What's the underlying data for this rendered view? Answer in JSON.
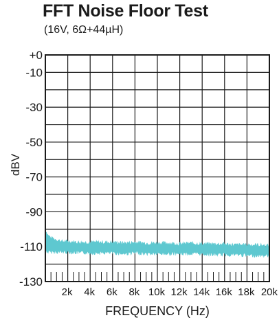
{
  "chart_data": {
    "type": "area",
    "title": "FFT Noise Floor Test",
    "subtitle": "(16V, 6Ω+44µH)",
    "xlabel": "FREQUENCY (Hz)",
    "ylabel": "dBV",
    "xlim": [
      0,
      20000
    ],
    "ylim": [
      -130,
      0
    ],
    "x_ticks": [
      {
        "value": 2000,
        "label": "2k"
      },
      {
        "value": 4000,
        "label": "4k"
      },
      {
        "value": 6000,
        "label": "6k"
      },
      {
        "value": 8000,
        "label": "8k"
      },
      {
        "value": 10000,
        "label": "10k"
      },
      {
        "value": 12000,
        "label": "12k"
      },
      {
        "value": 14000,
        "label": "14k"
      },
      {
        "value": 16000,
        "label": "16k"
      },
      {
        "value": 18000,
        "label": "18k"
      },
      {
        "value": 20000,
        "label": "20k"
      }
    ],
    "y_ticks": [
      {
        "value": 0,
        "label": "+0"
      },
      {
        "value": -10,
        "label": "-10"
      },
      {
        "value": -30,
        "label": "-30"
      },
      {
        "value": -50,
        "label": "-50"
      },
      {
        "value": -70,
        "label": "-70"
      },
      {
        "value": -90,
        "label": "-90"
      },
      {
        "value": -110,
        "label": "-110"
      },
      {
        "value": -130,
        "label": "-130"
      }
    ],
    "grid": true,
    "series": [
      {
        "color": "#5ec8d0",
        "x": [
          0,
          200,
          500,
          1000,
          1500,
          2000,
          3000,
          4000,
          5000,
          6000,
          7000,
          8000,
          9000,
          10000,
          11000,
          12000,
          13000,
          14000,
          15000,
          16000,
          17000,
          18000,
          19000,
          20000
        ],
        "max": [
          -100,
          -103,
          -105,
          -106,
          -107,
          -107,
          -107.5,
          -107.5,
          -107.5,
          -107.5,
          -108,
          -107.5,
          -108,
          -108,
          -108,
          -108.5,
          -108,
          -108.5,
          -108.5,
          -108.5,
          -109,
          -109,
          -109,
          -109.5
        ],
        "min": [
          -112,
          -113,
          -113,
          -113,
          -113,
          -113,
          -113.5,
          -113.5,
          -113.5,
          -113.5,
          -114,
          -113.5,
          -114,
          -114,
          -114,
          -114,
          -114,
          -114,
          -114.5,
          -114.5,
          -114.5,
          -115,
          -115,
          -115
        ]
      }
    ]
  }
}
